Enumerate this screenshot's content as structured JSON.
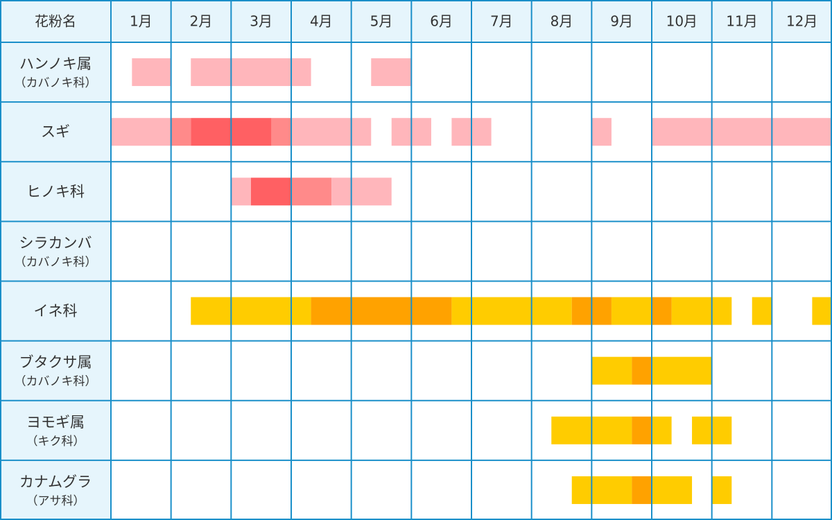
{
  "chart_data": {
    "type": "heatmap",
    "header_label": "花粉名",
    "months": [
      "1月",
      "2月",
      "3月",
      "4月",
      "5月",
      "6月",
      "7月",
      "8月",
      "9月",
      "10月",
      "11月",
      "12月"
    ],
    "legend": [],
    "colors": {
      "pink_light": "#ffb6bb",
      "pink_mid": "#ff8a8a",
      "pink_strong": "#ff6063",
      "yellow": "#ffcc00",
      "orange": "#ffa200",
      "grid": "#1a8fc9",
      "header_bg": "#e6f5fc"
    },
    "rows": [
      {
        "name": "ハンノキ属",
        "sub": "（カバノキ科）",
        "segments": [
          {
            "start": 0.35,
            "end": 1.0,
            "level": "pink_light"
          },
          {
            "start": 1.33,
            "end": 3.33,
            "level": "pink_light"
          },
          {
            "start": 4.33,
            "end": 5.0,
            "level": "pink_light"
          }
        ]
      },
      {
        "name": "スギ",
        "sub": "",
        "segments": [
          {
            "start": 0.0,
            "end": 1.0,
            "level": "pink_light"
          },
          {
            "start": 1.0,
            "end": 1.33,
            "level": "pink_mid"
          },
          {
            "start": 1.33,
            "end": 2.67,
            "level": "pink_strong"
          },
          {
            "start": 2.67,
            "end": 3.0,
            "level": "pink_mid"
          },
          {
            "start": 3.0,
            "end": 4.33,
            "level": "pink_light"
          },
          {
            "start": 4.67,
            "end": 5.33,
            "level": "pink_light"
          },
          {
            "start": 5.67,
            "end": 6.33,
            "level": "pink_light"
          },
          {
            "start": 8.0,
            "end": 8.33,
            "level": "pink_light"
          },
          {
            "start": 9.0,
            "end": 12.0,
            "level": "pink_light"
          }
        ]
      },
      {
        "name": "ヒノキ科",
        "sub": "",
        "segments": [
          {
            "start": 2.0,
            "end": 2.33,
            "level": "pink_light"
          },
          {
            "start": 2.33,
            "end": 3.0,
            "level": "pink_strong"
          },
          {
            "start": 3.0,
            "end": 3.67,
            "level": "pink_mid"
          },
          {
            "start": 3.67,
            "end": 4.67,
            "level": "pink_light"
          }
        ]
      },
      {
        "name": "シラカンバ",
        "sub": "（カバノキ科）",
        "segments": []
      },
      {
        "name": "イネ科",
        "sub": "",
        "segments": [
          {
            "start": 1.33,
            "end": 3.33,
            "level": "yellow"
          },
          {
            "start": 3.33,
            "end": 5.67,
            "level": "orange"
          },
          {
            "start": 5.67,
            "end": 7.67,
            "level": "yellow"
          },
          {
            "start": 7.67,
            "end": 8.33,
            "level": "orange"
          },
          {
            "start": 8.33,
            "end": 9.0,
            "level": "yellow"
          },
          {
            "start": 9.0,
            "end": 9.33,
            "level": "orange"
          },
          {
            "start": 9.33,
            "end": 10.33,
            "level": "yellow"
          },
          {
            "start": 10.67,
            "end": 11.0,
            "level": "yellow"
          },
          {
            "start": 11.67,
            "end": 12.0,
            "level": "yellow"
          }
        ]
      },
      {
        "name": "ブタクサ属",
        "sub": "（カバノキ科）",
        "segments": [
          {
            "start": 8.0,
            "end": 8.67,
            "level": "yellow"
          },
          {
            "start": 8.67,
            "end": 9.0,
            "level": "orange"
          },
          {
            "start": 9.0,
            "end": 10.0,
            "level": "yellow"
          }
        ]
      },
      {
        "name": "ヨモギ属",
        "sub": "（キク科）",
        "segments": [
          {
            "start": 7.33,
            "end": 8.67,
            "level": "yellow"
          },
          {
            "start": 8.67,
            "end": 9.0,
            "level": "orange"
          },
          {
            "start": 9.0,
            "end": 9.33,
            "level": "yellow"
          },
          {
            "start": 9.67,
            "end": 10.33,
            "level": "yellow"
          }
        ]
      },
      {
        "name": "カナムグラ",
        "sub": "（アサ科）",
        "segments": [
          {
            "start": 7.67,
            "end": 8.67,
            "level": "yellow"
          },
          {
            "start": 8.67,
            "end": 9.0,
            "level": "orange"
          },
          {
            "start": 9.0,
            "end": 9.67,
            "level": "yellow"
          },
          {
            "start": 10.0,
            "end": 10.33,
            "level": "yellow"
          }
        ]
      }
    ]
  }
}
